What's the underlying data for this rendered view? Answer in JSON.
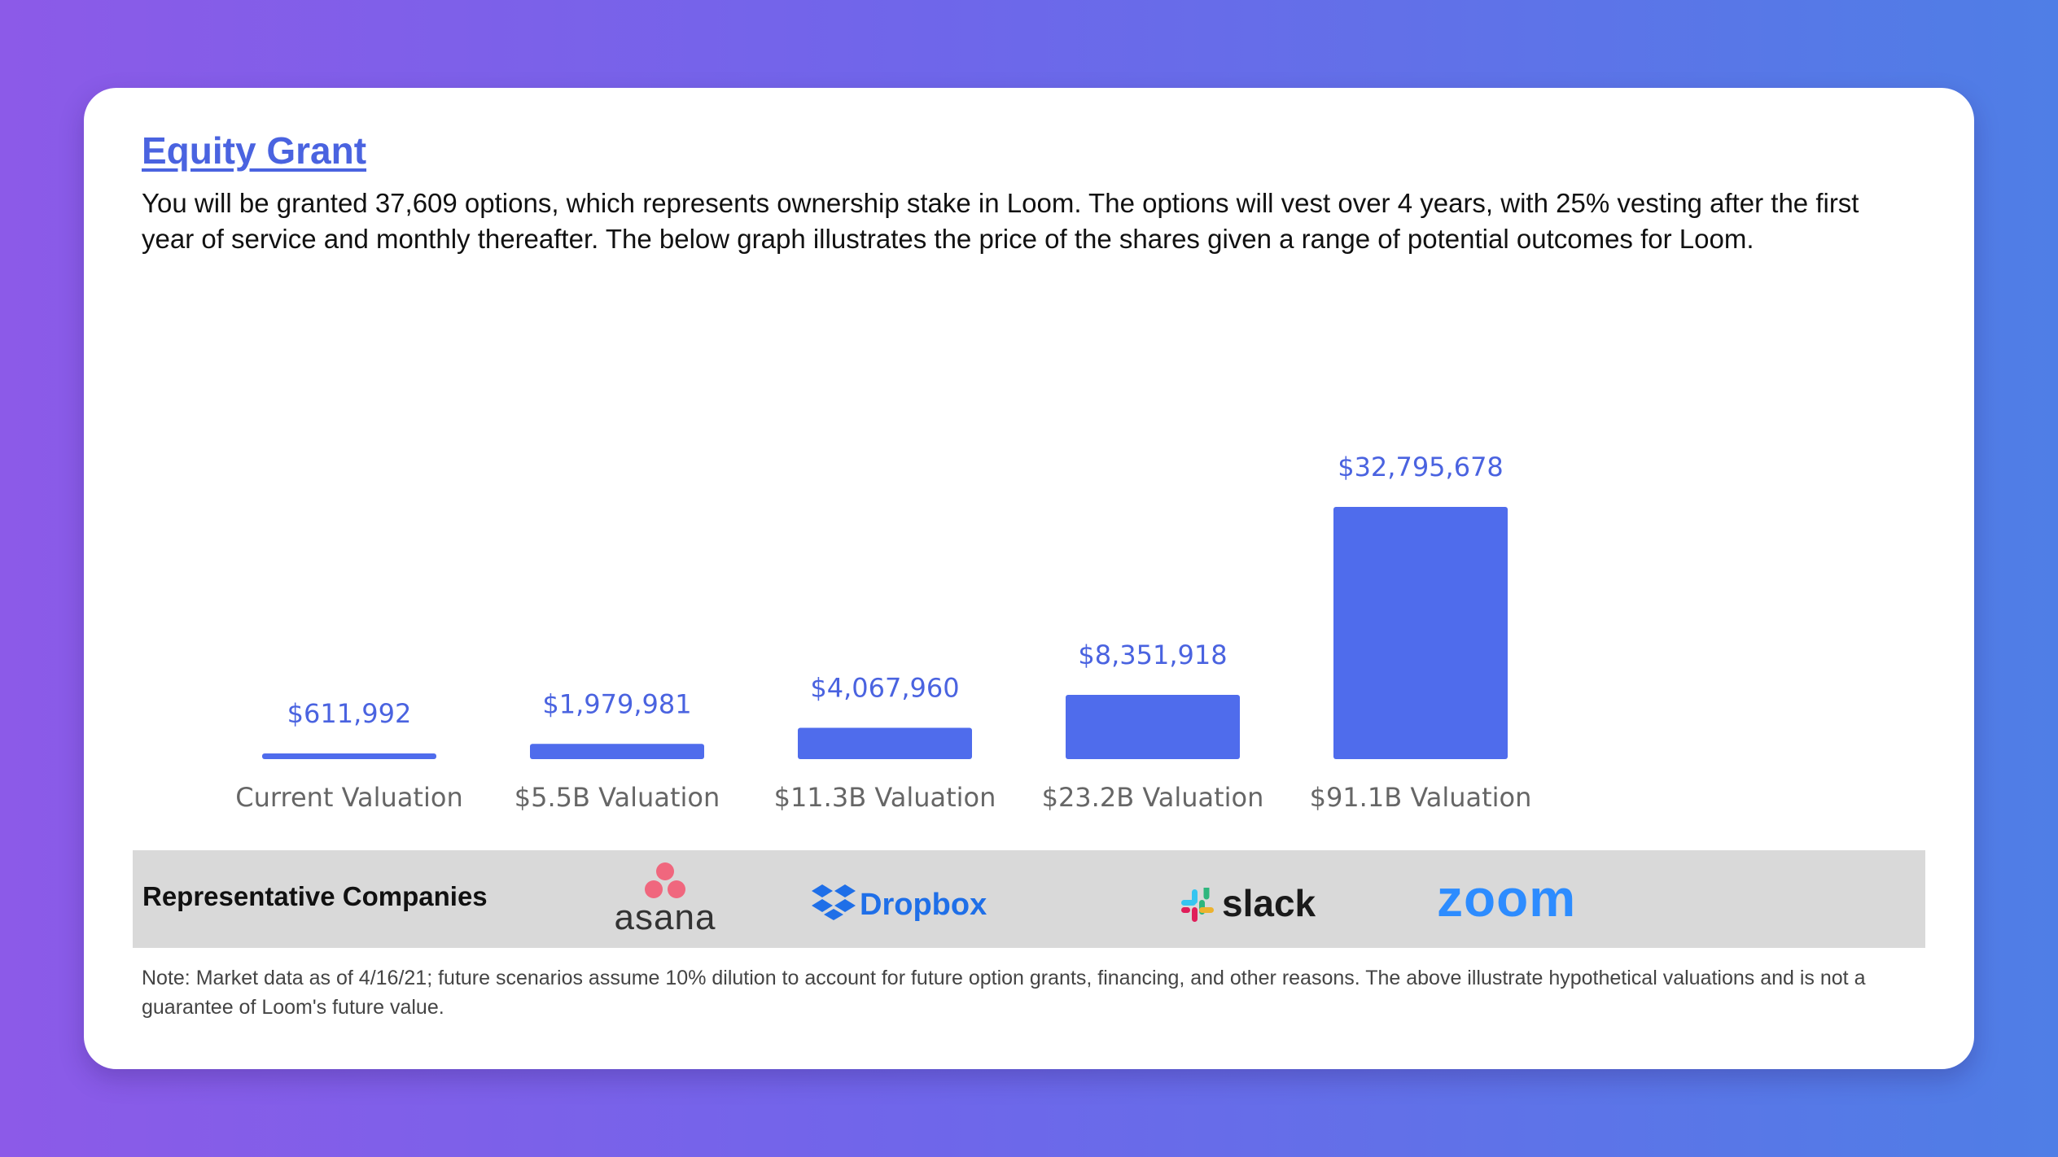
{
  "header": {
    "title": "Equity Grant",
    "intro": "You will be granted 37,609 options, which represents ownership stake in Loom. The options will vest over 4 years, with 25% vesting after the first year of service and monthly thereafter. The below graph illustrates the price of the shares given a range of potential outcomes for Loom."
  },
  "colors": {
    "bar": "#4f6cec",
    "label": "#4a63e0",
    "tick": "#666666"
  },
  "chart_data": {
    "type": "bar",
    "title": "",
    "xlabel": "",
    "ylabel": "",
    "categories": [
      "Current Valuation",
      "$5.5B Valuation",
      "$11.3B Valuation",
      "$23.2B Valuation",
      "$91.1B Valuation"
    ],
    "values": [
      611992,
      1979981,
      4067960,
      8351918,
      32795678
    ],
    "value_labels": [
      "$611,992",
      "$1,979,981",
      "$4,067,960",
      "$8,351,918",
      "$32,795,678"
    ],
    "ylim": [
      0,
      32795678
    ],
    "grid": false,
    "legend": "none"
  },
  "companies": {
    "label": "Representative Companies",
    "logos": [
      {
        "name": "asana",
        "text": "asana",
        "icon": "asana-logo-icon"
      },
      {
        "name": "dropbox",
        "text": "Dropbox",
        "icon": "dropbox-logo-icon"
      },
      {
        "name": "slack",
        "text": "slack",
        "icon": "slack-logo-icon"
      },
      {
        "name": "zoom",
        "text": "zoom",
        "icon": "zoom-logo-icon"
      }
    ]
  },
  "note": "Note: Market data as of 4/16/21; future scenarios assume 10% dilution to account for future option grants, financing, and other reasons. The above illustrate hypothetical valuations and is not a guarantee of Loom's future value."
}
